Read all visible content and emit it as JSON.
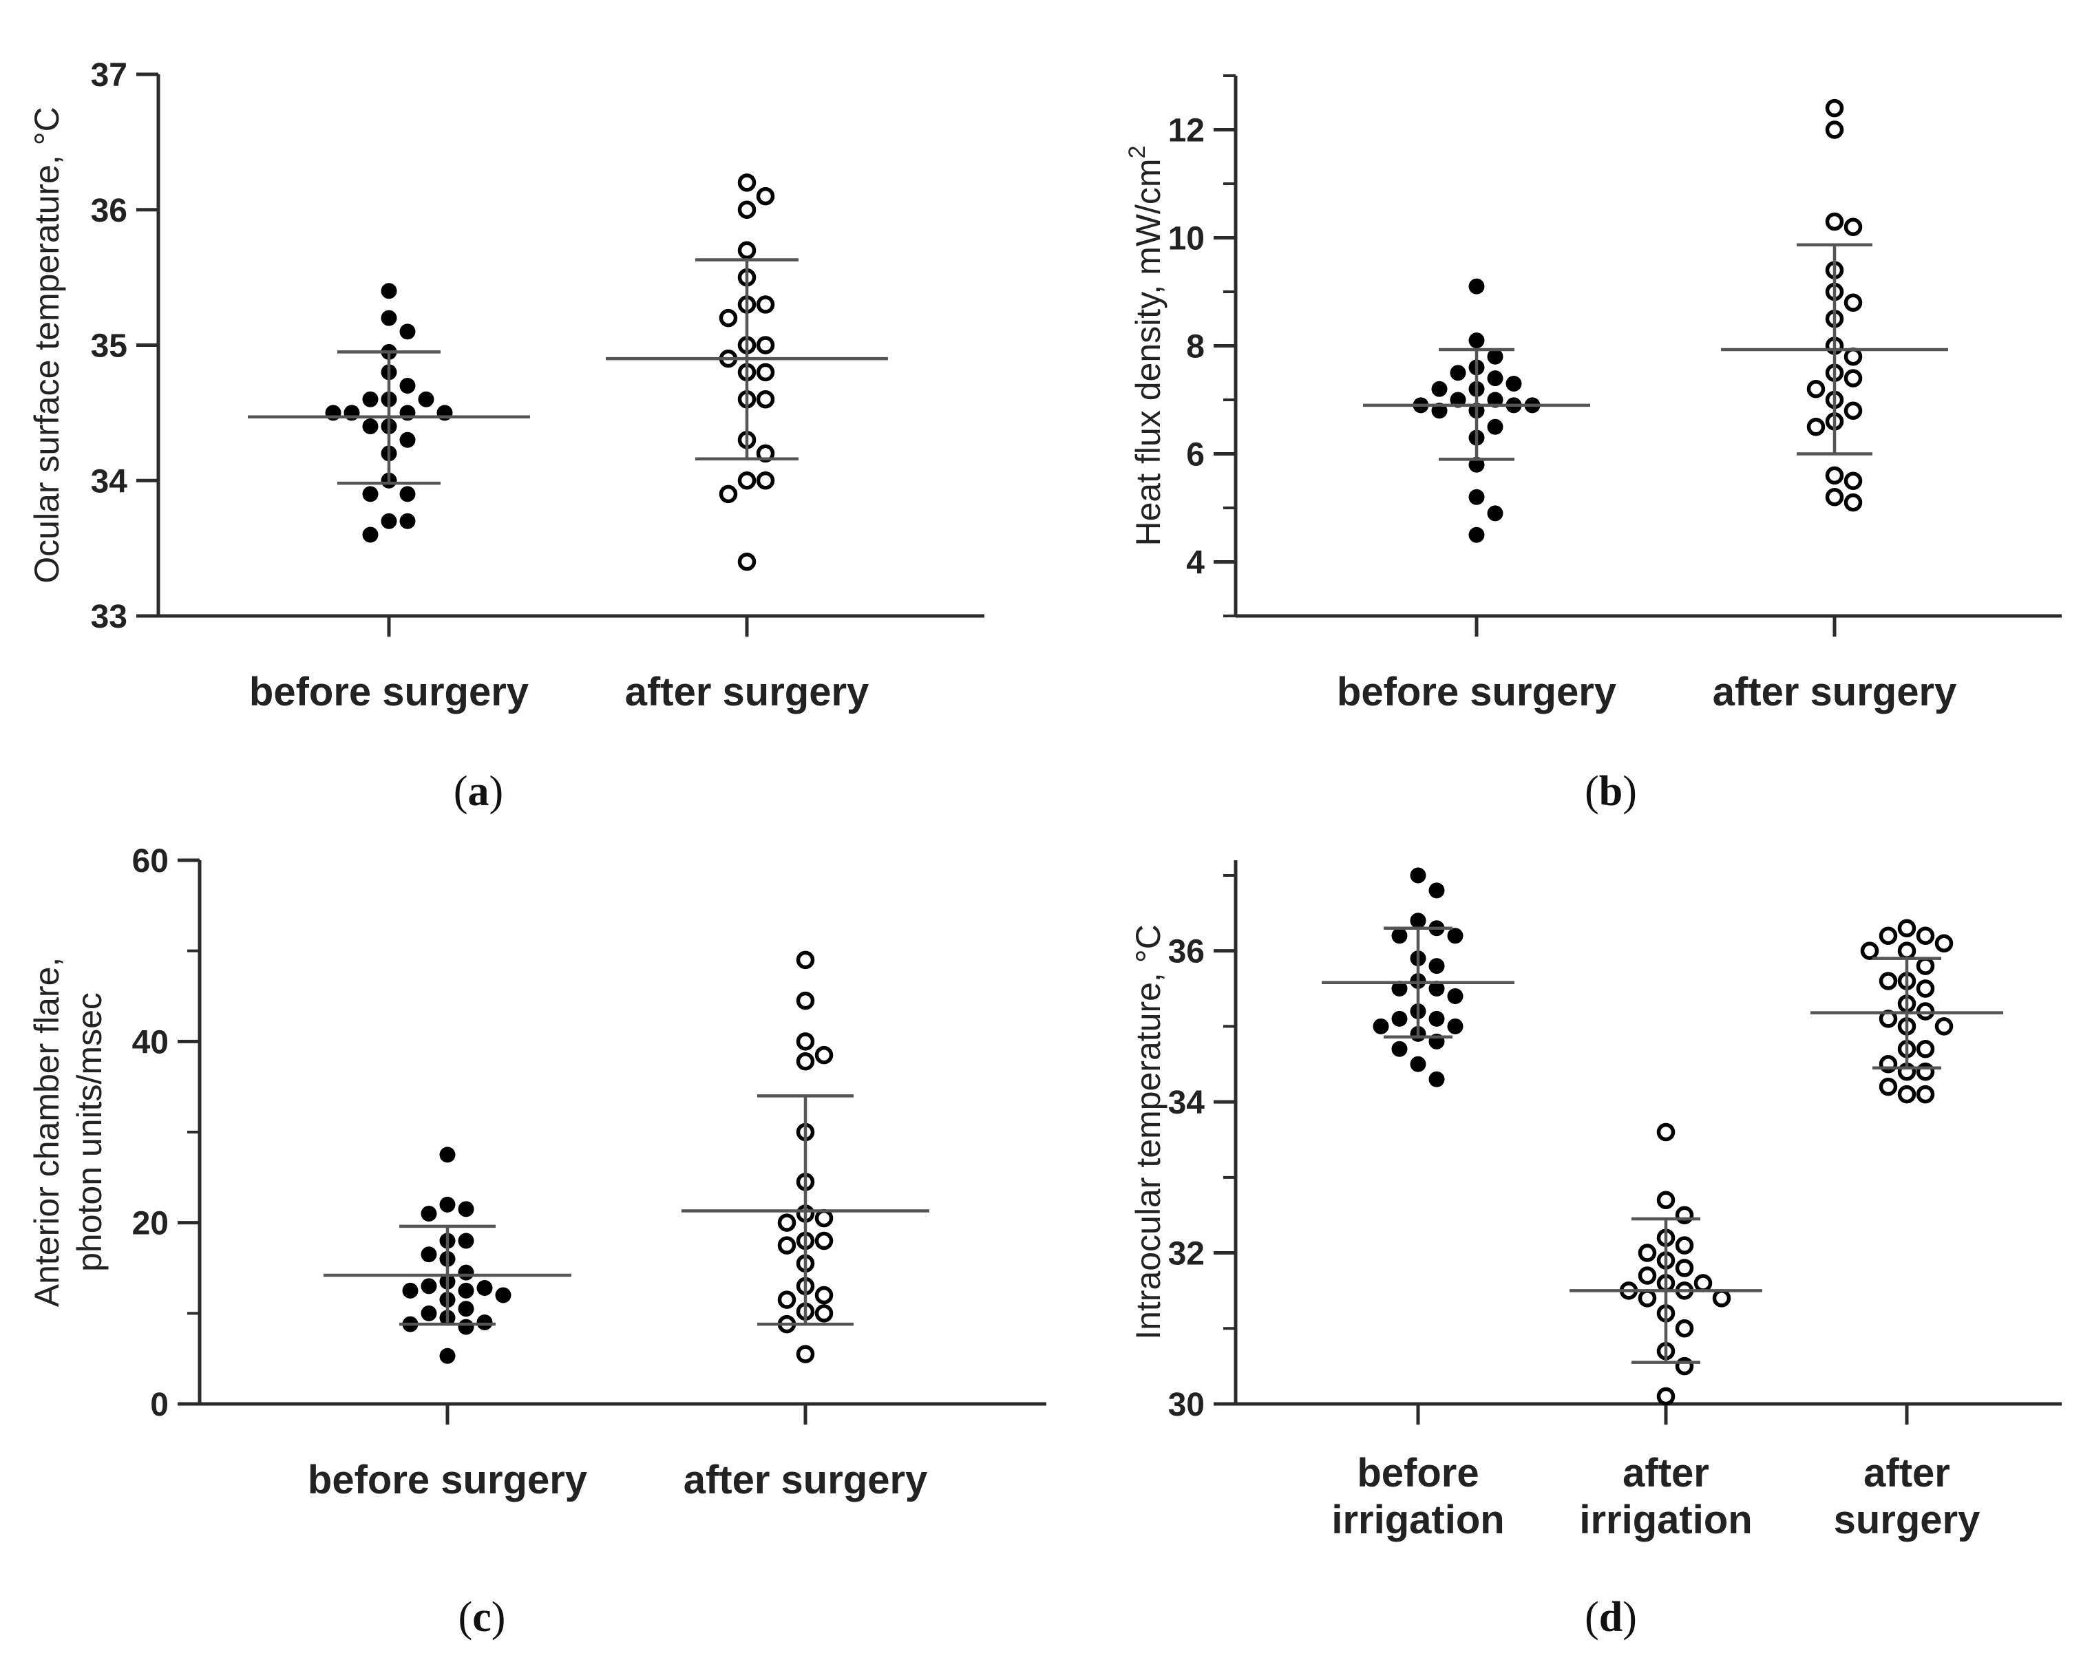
{
  "chart_data": [
    {
      "id": "a",
      "panel_label": "a",
      "type": "scatter",
      "ylabel": "Ocular surface temperature, °C",
      "ylim": [
        33,
        37
      ],
      "yticks": [
        33,
        34,
        35,
        36,
        37
      ],
      "minor_step": null,
      "categories": [
        "before surgery",
        "after surgery"
      ],
      "groups": [
        {
          "name": "before surgery",
          "filled": true,
          "mean": 34.47,
          "sd_low": 33.98,
          "sd_high": 34.95,
          "points": [
            35.4,
            35.2,
            35.1,
            34.95,
            34.8,
            34.7,
            34.6,
            34.6,
            34.6,
            34.5,
            34.5,
            34.5,
            34.5,
            34.4,
            34.4,
            34.3,
            34.2,
            34.0,
            33.9,
            33.9,
            33.7,
            33.7,
            33.6
          ]
        },
        {
          "name": "after surgery",
          "filled": false,
          "mean": 34.9,
          "sd_low": 34.16,
          "sd_high": 35.63,
          "points": [
            36.2,
            36.1,
            36.0,
            35.7,
            35.5,
            35.3,
            35.3,
            35.2,
            35.0,
            35.0,
            34.9,
            34.8,
            34.8,
            34.6,
            34.6,
            34.3,
            34.2,
            34.0,
            34.0,
            33.9,
            33.4
          ]
        }
      ]
    },
    {
      "id": "b",
      "panel_label": "b",
      "type": "scatter",
      "ylabel": "Heat flux density, mW/cm",
      "ylabel_sup": "2",
      "ylim": [
        3,
        13
      ],
      "yticks": [
        4,
        6,
        8,
        10,
        12
      ],
      "minor_step": 1,
      "categories": [
        "before surgery",
        "after surgery"
      ],
      "groups": [
        {
          "name": "before surgery",
          "filled": true,
          "mean": 6.9,
          "sd_low": 5.9,
          "sd_high": 7.93,
          "points": [
            9.1,
            8.1,
            7.8,
            7.6,
            7.5,
            7.4,
            7.3,
            7.2,
            7.2,
            7.0,
            7.0,
            6.9,
            6.9,
            6.9,
            6.8,
            6.8,
            6.5,
            6.3,
            5.8,
            5.2,
            4.9,
            4.5
          ]
        },
        {
          "name": "after surgery",
          "filled": false,
          "mean": 7.93,
          "sd_low": 6.0,
          "sd_high": 9.87,
          "points": [
            12.4,
            12.0,
            10.3,
            10.2,
            9.4,
            9.0,
            8.8,
            8.5,
            8.0,
            7.8,
            7.5,
            7.4,
            7.2,
            7.0,
            6.8,
            6.6,
            6.5,
            5.6,
            5.5,
            5.2,
            5.1
          ]
        }
      ]
    },
    {
      "id": "c",
      "panel_label": "c",
      "type": "scatter",
      "ylabel_lines": [
        "Anterior chamber flare,",
        "photon units/msec"
      ],
      "ylim": [
        0,
        60
      ],
      "yticks": [
        0,
        20,
        40,
        60
      ],
      "minor_step": 10,
      "categories": [
        "before surgery",
        "after surgery"
      ],
      "groups": [
        {
          "name": "before surgery",
          "filled": true,
          "mean": 14.2,
          "sd_low": 8.8,
          "sd_high": 19.6,
          "points": [
            27.5,
            22.0,
            21.5,
            21.0,
            18.0,
            18.0,
            16.5,
            16.0,
            14.5,
            13.5,
            13.0,
            12.8,
            12.5,
            12.5,
            12.0,
            11.5,
            10.5,
            10.0,
            9.5,
            9.0,
            8.8,
            8.5,
            5.3
          ]
        },
        {
          "name": "after surgery",
          "filled": false,
          "mean": 21.3,
          "sd_low": 8.8,
          "sd_high": 34.0,
          "points": [
            49.0,
            44.5,
            40.0,
            38.5,
            37.8,
            30.0,
            24.5,
            21.0,
            20.5,
            20.0,
            18.0,
            18.0,
            17.5,
            15.5,
            13.0,
            12.0,
            11.5,
            10.2,
            10.0,
            8.8,
            5.5
          ]
        }
      ]
    },
    {
      "id": "d",
      "panel_label": "d",
      "type": "scatter",
      "ylabel": "Intraocular temperature, °C",
      "ylim": [
        30,
        37.2
      ],
      "yticks": [
        30,
        32,
        34,
        36
      ],
      "minor_step": 1,
      "categories": [
        [
          "before",
          "irrigation"
        ],
        [
          "after",
          "irrigation"
        ],
        [
          "after",
          "surgery"
        ]
      ],
      "groups": [
        {
          "name": "before irrigation",
          "filled": true,
          "mean": 35.58,
          "sd_low": 34.86,
          "sd_high": 36.3,
          "points": [
            37.0,
            36.8,
            36.4,
            36.3,
            36.2,
            36.2,
            35.9,
            35.8,
            35.6,
            35.5,
            35.5,
            35.4,
            35.2,
            35.1,
            35.1,
            35.0,
            35.0,
            34.9,
            34.8,
            34.7,
            34.5,
            34.3
          ]
        },
        {
          "name": "after irrigation",
          "filled": false,
          "mean": 31.5,
          "sd_low": 30.55,
          "sd_high": 32.45,
          "points": [
            33.6,
            32.7,
            32.5,
            32.2,
            32.1,
            32.0,
            31.9,
            31.8,
            31.7,
            31.6,
            31.6,
            31.5,
            31.5,
            31.4,
            31.4,
            31.2,
            31.0,
            30.7,
            30.5,
            30.1
          ]
        },
        {
          "name": "after surgery",
          "filled": false,
          "mean": 35.18,
          "sd_low": 34.45,
          "sd_high": 35.9,
          "points": [
            36.3,
            36.2,
            36.2,
            36.1,
            36.0,
            36.0,
            35.8,
            35.6,
            35.6,
            35.5,
            35.3,
            35.2,
            35.1,
            35.0,
            35.0,
            34.7,
            34.7,
            34.5,
            34.4,
            34.4,
            34.2,
            34.1,
            34.1
          ]
        }
      ]
    }
  ]
}
